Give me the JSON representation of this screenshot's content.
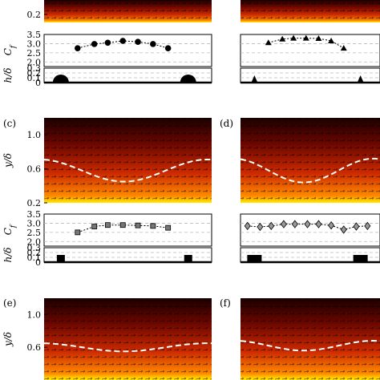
{
  "colors": {
    "field_dark": "#1a0000",
    "field_mid": "#8a0a00",
    "field_hot": "#e04000",
    "field_wall": "#ffee00",
    "dash_line": "#ffffff",
    "marker": "#000000",
    "square_fill": "#777777",
    "diamond_fill": "#999999"
  },
  "chart_data": [
    {
      "panel": "a",
      "panel_label": "",
      "type": "flow_field_with_scatter",
      "field_ylabel": "",
      "field_yticks": [
        "0.2"
      ],
      "cf_ylabel": "C_f",
      "cf_yticks": [
        "3.5",
        "3.0",
        "2.5",
        "2.0"
      ],
      "cf_ylim": [
        1.75,
        3.5
      ],
      "marker": "circle",
      "marker_fill": "#000000",
      "cf_x": [
        0.2,
        0.3,
        0.38,
        0.47,
        0.56,
        0.65,
        0.74
      ],
      "cf_values": [
        2.75,
        2.98,
        3.05,
        3.15,
        3.1,
        2.98,
        2.75
      ],
      "roughness_ylabel": "h/δ",
      "roughness_yticks": [
        "0.3",
        "0.2",
        "0.1",
        "0"
      ],
      "roughness_shape": "semicircle",
      "roughness_height": 0.2,
      "wavy_line": null,
      "crop": "bottom"
    },
    {
      "panel": "b",
      "panel_label": "",
      "type": "flow_field_with_scatter",
      "field_ylabel": "",
      "field_yticks": [],
      "cf_ylabel": "",
      "cf_yticks": [],
      "cf_ylim": [
        1.75,
        3.5
      ],
      "marker": "triangle",
      "marker_fill": "#000000",
      "cf_x": [
        0.2,
        0.3,
        0.38,
        0.47,
        0.56,
        0.65,
        0.74
      ],
      "cf_values": [
        3.05,
        3.25,
        3.3,
        3.3,
        3.28,
        3.15,
        2.75
      ],
      "roughness_ylabel": "",
      "roughness_yticks": [],
      "roughness_shape": "triangle",
      "roughness_height": 0.15,
      "wavy_line": null,
      "crop": "bottom"
    },
    {
      "panel": "c",
      "panel_label": "(c)",
      "type": "flow_field_with_scatter",
      "field_ylabel": "y/δ",
      "field_yticks": [
        "1.0",
        "0.6",
        "0.2"
      ],
      "cf_ylabel": "C_f",
      "cf_yticks": [
        "3.5",
        "3.0",
        "2.5",
        "2.0"
      ],
      "cf_ylim": [
        1.75,
        3.5
      ],
      "marker": "square",
      "marker_fill": "#777777",
      "cf_x": [
        0.2,
        0.3,
        0.38,
        0.47,
        0.56,
        0.65,
        0.74
      ],
      "cf_values": [
        2.5,
        2.82,
        2.9,
        2.9,
        2.88,
        2.85,
        2.75
      ],
      "roughness_ylabel": "h/δ",
      "roughness_yticks": [
        "0.3",
        "0.2",
        "0.1",
        "0"
      ],
      "roughness_shape": "square",
      "roughness_height": 0.15,
      "wavy_line": {
        "y_mean": 0.58,
        "amplitude": 0.13
      },
      "crop": "none"
    },
    {
      "panel": "d",
      "panel_label": "(d)",
      "type": "flow_field_with_scatter",
      "field_ylabel": "",
      "field_yticks": [],
      "cf_ylabel": "",
      "cf_yticks": [],
      "cf_ylim": [
        1.75,
        3.5
      ],
      "marker": "diamond",
      "marker_fill": "#999999",
      "cf_x": [
        0.05,
        0.14,
        0.22,
        0.31,
        0.39,
        0.48,
        0.56,
        0.65,
        0.74,
        0.83,
        0.91
      ],
      "cf_values": [
        2.85,
        2.8,
        2.85,
        2.95,
        2.95,
        2.95,
        2.95,
        2.88,
        2.65,
        2.82,
        2.85
      ],
      "roughness_ylabel": "",
      "roughness_yticks": [],
      "roughness_shape": "rectangle",
      "roughness_height": 0.15,
      "wavy_line": {
        "y_mean": 0.58,
        "amplitude": 0.14
      },
      "crop": "none"
    },
    {
      "panel": "e",
      "panel_label": "(e)",
      "type": "flow_field",
      "field_ylabel": "y/δ",
      "field_yticks": [
        "1.0",
        "0.6"
      ],
      "wavy_line": {
        "y_mean": 0.6,
        "amplitude": 0.05
      },
      "crop": "top"
    },
    {
      "panel": "f",
      "panel_label": "(f)",
      "type": "flow_field",
      "field_ylabel": "",
      "field_yticks": [],
      "wavy_line": {
        "y_mean": 0.62,
        "amplitude": 0.06
      },
      "crop": "top"
    }
  ]
}
